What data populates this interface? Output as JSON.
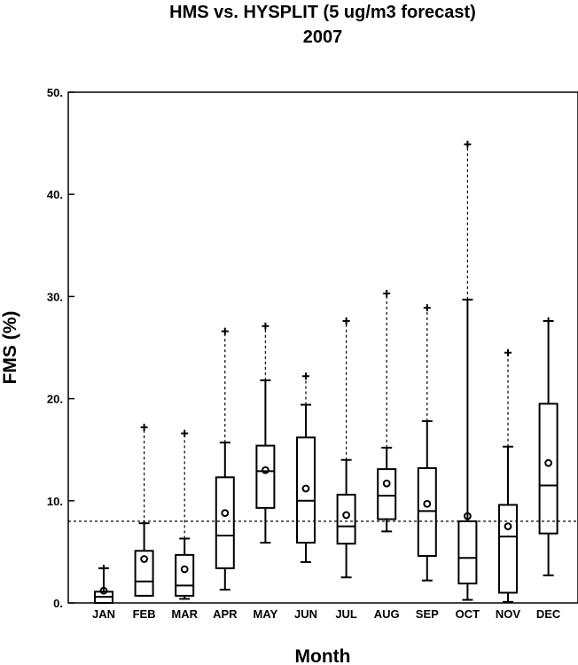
{
  "chart_data": {
    "type": "box",
    "title": "HMS vs. HYSPLIT (5 ug/m3 forecast)",
    "subtitle": "2007",
    "xlabel": "Month",
    "ylabel": "FMS (%)",
    "ylim": [
      0,
      50
    ],
    "yticks": [
      {
        "value": 0,
        "label": "0."
      },
      {
        "value": 10,
        "label": "10."
      },
      {
        "value": 20,
        "label": "20."
      },
      {
        "value": 30,
        "label": "30."
      },
      {
        "value": 40,
        "label": "40."
      },
      {
        "value": 50,
        "label": "50."
      }
    ],
    "reference_line": 8,
    "categories": [
      "JAN",
      "FEB",
      "MAR",
      "APR",
      "MAY",
      "JUN",
      "JUL",
      "AUG",
      "SEP",
      "OCT",
      "NOV",
      "DEC"
    ],
    "boxes": [
      {
        "min": 0.0,
        "q1": 0.0,
        "median": 0.6,
        "q3": 1.1,
        "whisker_high": 3.4,
        "max": 3.4,
        "mean": 1.2
      },
      {
        "min": 0.7,
        "q1": 0.7,
        "median": 2.1,
        "q3": 5.1,
        "whisker_high": 7.8,
        "max": 17.2,
        "mean": 4.3
      },
      {
        "min": 0.4,
        "q1": 0.7,
        "median": 1.7,
        "q3": 4.7,
        "whisker_high": 6.3,
        "max": 16.6,
        "mean": 3.3
      },
      {
        "min": 1.3,
        "q1": 3.4,
        "median": 6.6,
        "q3": 12.3,
        "whisker_high": 15.7,
        "max": 26.6,
        "mean": 8.8
      },
      {
        "min": 5.9,
        "q1": 9.3,
        "median": 12.9,
        "q3": 15.4,
        "whisker_high": 21.8,
        "max": 27.1,
        "mean": 13.0
      },
      {
        "min": 4.0,
        "q1": 5.9,
        "median": 10.0,
        "q3": 16.2,
        "whisker_high": 19.4,
        "max": 22.2,
        "mean": 11.2
      },
      {
        "min": 2.5,
        "q1": 5.8,
        "median": 7.5,
        "q3": 10.6,
        "whisker_high": 14.0,
        "max": 27.6,
        "mean": 8.6
      },
      {
        "min": 7.0,
        "q1": 8.2,
        "median": 10.5,
        "q3": 13.1,
        "whisker_high": 15.2,
        "max": 30.3,
        "mean": 11.7
      },
      {
        "min": 2.2,
        "q1": 4.6,
        "median": 9.0,
        "q3": 13.2,
        "whisker_high": 17.8,
        "max": 28.9,
        "mean": 9.7
      },
      {
        "min": 0.3,
        "q1": 1.9,
        "median": 4.4,
        "q3": 8.0,
        "whisker_high": 29.7,
        "max": 44.9,
        "mean": 8.5
      },
      {
        "min": 0.1,
        "q1": 1.0,
        "median": 6.5,
        "q3": 9.6,
        "whisker_high": 15.3,
        "max": 24.5,
        "mean": 7.5
      },
      {
        "min": 2.7,
        "q1": 6.8,
        "median": 11.5,
        "q3": 19.5,
        "whisker_high": 27.6,
        "max": 27.6,
        "mean": 13.7
      }
    ]
  }
}
